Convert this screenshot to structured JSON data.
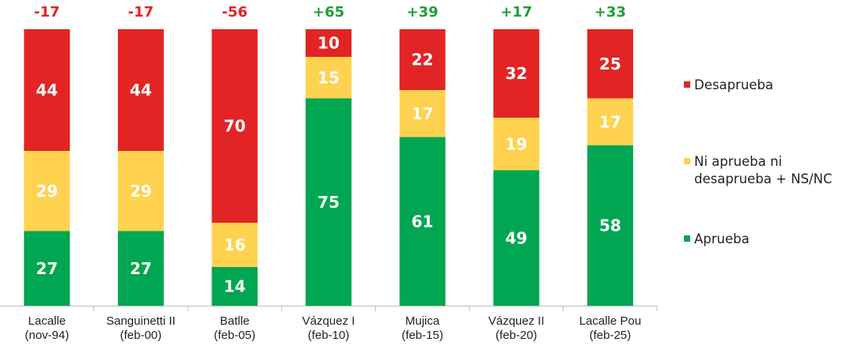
{
  "chart_data": {
    "type": "bar",
    "stacked": true,
    "categories": [
      [
        "Lacalle",
        "(nov-94)"
      ],
      [
        "Sanguinetti II",
        "(feb-00)"
      ],
      [
        "Batlle",
        "(feb-05)"
      ],
      [
        "Vázquez I",
        "(feb-10)"
      ],
      [
        "Mujica",
        "(feb-15)"
      ],
      [
        "Vázquez II",
        "(feb-20)"
      ],
      [
        "Lacalle Pou",
        "(feb-25)"
      ]
    ],
    "net_labels": [
      "-17",
      "-17",
      "-56",
      "+65",
      "+39",
      "+17",
      "+33"
    ],
    "series": [
      {
        "name": "Aprueba",
        "color": "#00A651",
        "values": [
          27,
          27,
          14,
          75,
          61,
          49,
          58
        ]
      },
      {
        "name": "Ni aprueba ni desaprueba + NS/NC",
        "legend_lines": [
          "Ni aprueba ni",
          "desaprueba + NS/NC"
        ],
        "color": "#FFD24F",
        "values": [
          29,
          29,
          16,
          15,
          17,
          19,
          17
        ]
      },
      {
        "name": "Desaprueba",
        "color": "#E32424",
        "values": [
          44,
          44,
          70,
          10,
          22,
          32,
          25
        ]
      }
    ],
    "ylim": [
      0,
      100
    ],
    "legend": "right",
    "legend_order": [
      "Desaprueba",
      "Ni aprueba ni desaprueba + NS/NC",
      "Aprueba"
    ],
    "net_colors": {
      "negative": "#E32424",
      "positive": "#1F9E3A"
    },
    "grid": false
  }
}
